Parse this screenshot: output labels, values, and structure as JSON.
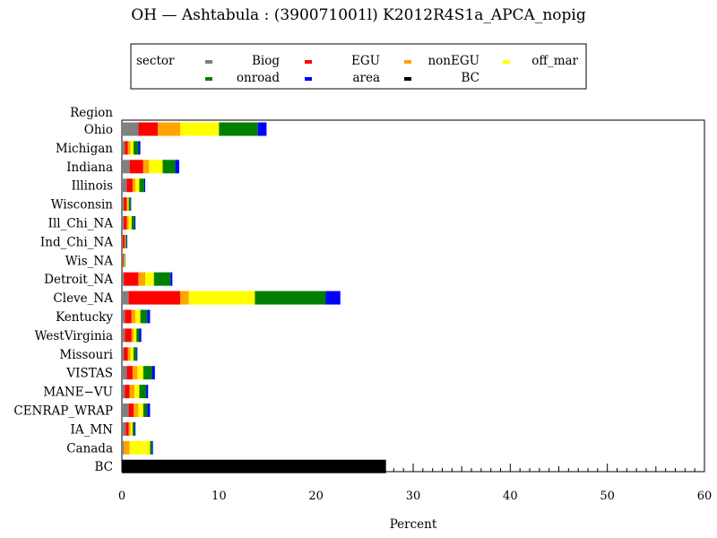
{
  "chart_data": {
    "type": "bar",
    "orientation": "horizontal",
    "stacked": true,
    "title": "OH  —  Ashtabula  :  (390071001l)  K2012R4S1a_APCA_nopig",
    "xlabel": "Percent",
    "ylabel": "Region",
    "xlim": [
      0,
      60
    ],
    "xticks": [
      0,
      10,
      20,
      30,
      40,
      50,
      60
    ],
    "grid": false,
    "legend": {
      "title": "sector",
      "placement": "top",
      "entries": [
        "Biog",
        "EGU",
        "nonEGU",
        "off_mar",
        "onroad",
        "area",
        "BC"
      ]
    },
    "categories": [
      "Ohio",
      "Michigan",
      "Indiana",
      "Illinois",
      "Wisconsin",
      "Ill_Chi_NA",
      "Ind_Chi_NA",
      "Wis_NA",
      "Detroit_NA",
      "Cleve_NA",
      "Kentucky",
      "WestVirginia",
      "Missouri",
      "VISTAS",
      "MANE−VU",
      "CENRAP_WRAP",
      "IA_MN",
      "Canada",
      "BC"
    ],
    "series": [
      {
        "name": "Biog",
        "color": "#808080",
        "values": [
          1.7,
          0.3,
          0.8,
          0.5,
          0.2,
          0.2,
          0.1,
          0.1,
          0.2,
          0.7,
          0.3,
          0.3,
          0.2,
          0.5,
          0.3,
          0.7,
          0.4,
          0.2,
          0
        ]
      },
      {
        "name": "EGU",
        "color": "#ff0000",
        "values": [
          2.0,
          0.3,
          1.4,
          0.6,
          0.3,
          0.3,
          0.2,
          0.1,
          1.5,
          5.3,
          0.7,
          0.7,
          0.4,
          0.6,
          0.5,
          0.5,
          0.3,
          0.0,
          0
        ]
      },
      {
        "name": "nonEGU",
        "color": "#ffa500",
        "values": [
          2.3,
          0.3,
          0.6,
          0.3,
          0.1,
          0.2,
          0.1,
          0.05,
          0.7,
          0.9,
          0.4,
          0.2,
          0.3,
          0.5,
          0.5,
          0.5,
          0.2,
          0.6,
          0
        ]
      },
      {
        "name": "off_mar",
        "color": "#ffff00",
        "values": [
          4.0,
          0.3,
          1.4,
          0.4,
          0.1,
          0.3,
          0.0,
          0.05,
          0.9,
          6.8,
          0.5,
          0.3,
          0.3,
          0.6,
          0.5,
          0.5,
          0.2,
          2.1,
          0
        ]
      },
      {
        "name": "onroad",
        "color": "#008000",
        "values": [
          4.0,
          0.5,
          1.3,
          0.5,
          0.2,
          0.3,
          0.1,
          0.05,
          1.7,
          7.3,
          0.7,
          0.3,
          0.3,
          0.9,
          0.7,
          0.4,
          0.2,
          0.2,
          0
        ]
      },
      {
        "name": "area",
        "color": "#0000ff",
        "values": [
          0.9,
          0.2,
          0.4,
          0.1,
          0.05,
          0.1,
          0.05,
          0.0,
          0.2,
          1.5,
          0.3,
          0.2,
          0.1,
          0.3,
          0.2,
          0.3,
          0.1,
          0.1,
          0
        ]
      },
      {
        "name": "BC",
        "color": "#000000",
        "values": [
          0,
          0,
          0,
          0,
          0,
          0,
          0,
          0,
          0,
          0,
          0,
          0,
          0,
          0,
          0,
          0,
          0,
          0,
          27.2
        ]
      }
    ]
  }
}
